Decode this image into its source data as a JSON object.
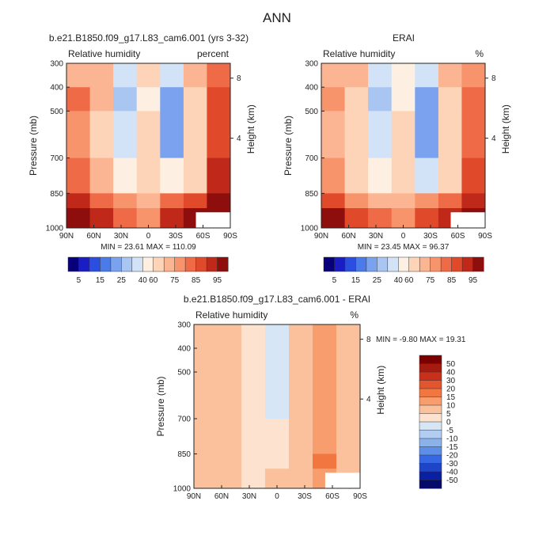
{
  "figure": {
    "title": "ANN"
  },
  "panels": [
    {
      "id": "model",
      "title": "b.e21.B1850.f09_g17.L83_cam6.001 (yrs 3-32)",
      "left_label": "Relative humidity",
      "right_label": "percent",
      "stats": "MIN = 23.61 MAX = 110.09"
    },
    {
      "id": "obs",
      "title": "ERAI",
      "left_label": "Relative humidity",
      "right_label": "%",
      "stats": "MIN = 23.45 MAX = 96.37"
    },
    {
      "id": "diff",
      "title": "b.e21.B1850.f09_g17.L83_cam6.001 - ERAI",
      "left_label": "Relative humidity",
      "right_label": "%",
      "stats": "MIN = -9.80 MAX = 19.31"
    }
  ],
  "axes": {
    "x_ticks": [
      "90N",
      "60N",
      "30N",
      "0",
      "30S",
      "60S",
      "90S"
    ],
    "p_ticks": [
      "300",
      "400",
      "500",
      "700",
      "850",
      "1000"
    ],
    "z_ticks": [
      "8",
      "4"
    ],
    "y_label_left": "Pressure (mb)",
    "y_label_right": "Height (km)"
  },
  "colors": {
    "rh_levels": [
      "5",
      "15",
      "25",
      "40",
      "60",
      "75",
      "85",
      "95"
    ],
    "rh_palette": [
      "#08007a",
      "#1a1cc4",
      "#2a4fe0",
      "#4b7be8",
      "#7aa2ee",
      "#a9c5f2",
      "#d2e2f7",
      "#fdf0e2",
      "#fdd4b8",
      "#fcb592",
      "#f8946c",
      "#ef6b47",
      "#e04a2b",
      "#c0281a",
      "#8e0d0d"
    ],
    "diff_levels": [
      "50",
      "40",
      "30",
      "20",
      "15",
      "10",
      "5",
      "0",
      "-5",
      "-10",
      "-15",
      "-20",
      "-30",
      "-40",
      "-50"
    ],
    "diff_palette": [
      "#7b0000",
      "#a61b0f",
      "#c9301b",
      "#e2552d",
      "#f2763f",
      "#f89d6e",
      "#fbc19d",
      "#fde2cf",
      "#d6e6f7",
      "#b1cdf2",
      "#8ab2ec",
      "#5d8eea",
      "#3768e3",
      "#1e45c8",
      "#0b1fa3",
      "#050a6b"
    ]
  },
  "chart_data": [
    {
      "type": "heatmap",
      "title": "b.e21.B1850.f09_g17.L83_cam6.001 (yrs 3-32)",
      "xlabel": "",
      "ylabel": "Pressure (mb)",
      "y2label": "Height (km)",
      "x_categories": [
        "90N",
        "60N",
        "30N",
        "0",
        "30S",
        "60S",
        "90S"
      ],
      "y_categories": [
        "300",
        "400",
        "500",
        "700",
        "850",
        "1000"
      ],
      "field": "Relative humidity",
      "units": "percent",
      "min": 23.61,
      "max": 110.09,
      "values": [
        [
          65,
          70,
          35,
          55,
          35,
          70,
          80
        ],
        [
          80,
          65,
          30,
          50,
          25,
          60,
          85
        ],
        [
          75,
          60,
          35,
          55,
          25,
          55,
          85
        ],
        [
          80,
          65,
          45,
          60,
          45,
          60,
          90
        ],
        [
          90,
          80,
          75,
          65,
          80,
          85,
          95
        ],
        [
          100,
          90,
          80,
          75,
          90,
          95,
          100
        ]
      ]
    },
    {
      "type": "heatmap",
      "title": "ERAI",
      "xlabel": "",
      "ylabel": "Pressure (mb)",
      "y2label": "Height (km)",
      "x_categories": [
        "90N",
        "60N",
        "30N",
        "0",
        "30S",
        "60S",
        "90S"
      ],
      "y_categories": [
        "300",
        "400",
        "500",
        "700",
        "850",
        "1000"
      ],
      "field": "Relative humidity",
      "units": "%",
      "min": 23.45,
      "max": 96.37,
      "values": [
        [
          70,
          65,
          35,
          50,
          35,
          65,
          75
        ],
        [
          75,
          60,
          30,
          50,
          25,
          60,
          80
        ],
        [
          70,
          55,
          35,
          55,
          25,
          55,
          80
        ],
        [
          75,
          60,
          45,
          55,
          40,
          55,
          85
        ],
        [
          85,
          75,
          70,
          65,
          75,
          80,
          90
        ],
        [
          95,
          85,
          80,
          75,
          85,
          90,
          95
        ]
      ]
    },
    {
      "type": "heatmap",
      "title": "b.e21.B1850.f09_g17.L83_cam6.001 - ERAI",
      "xlabel": "",
      "ylabel": "Pressure (mb)",
      "y2label": "Height (km)",
      "x_categories": [
        "90N",
        "60N",
        "30N",
        "0",
        "30S",
        "60S",
        "90S"
      ],
      "y_categories": [
        "300",
        "400",
        "500",
        "700",
        "850",
        "1000"
      ],
      "field": "Relative humidity",
      "units": "%",
      "min": -9.8,
      "max": 19.31,
      "values": [
        [
          5,
          5,
          0,
          -5,
          5,
          10,
          5
        ],
        [
          5,
          5,
          0,
          -5,
          5,
          10,
          5
        ],
        [
          5,
          5,
          0,
          -5,
          5,
          10,
          5
        ],
        [
          5,
          5,
          0,
          0,
          5,
          10,
          5
        ],
        [
          5,
          5,
          0,
          0,
          5,
          15,
          5
        ],
        [
          5,
          5,
          0,
          5,
          5,
          10,
          5
        ]
      ]
    }
  ]
}
